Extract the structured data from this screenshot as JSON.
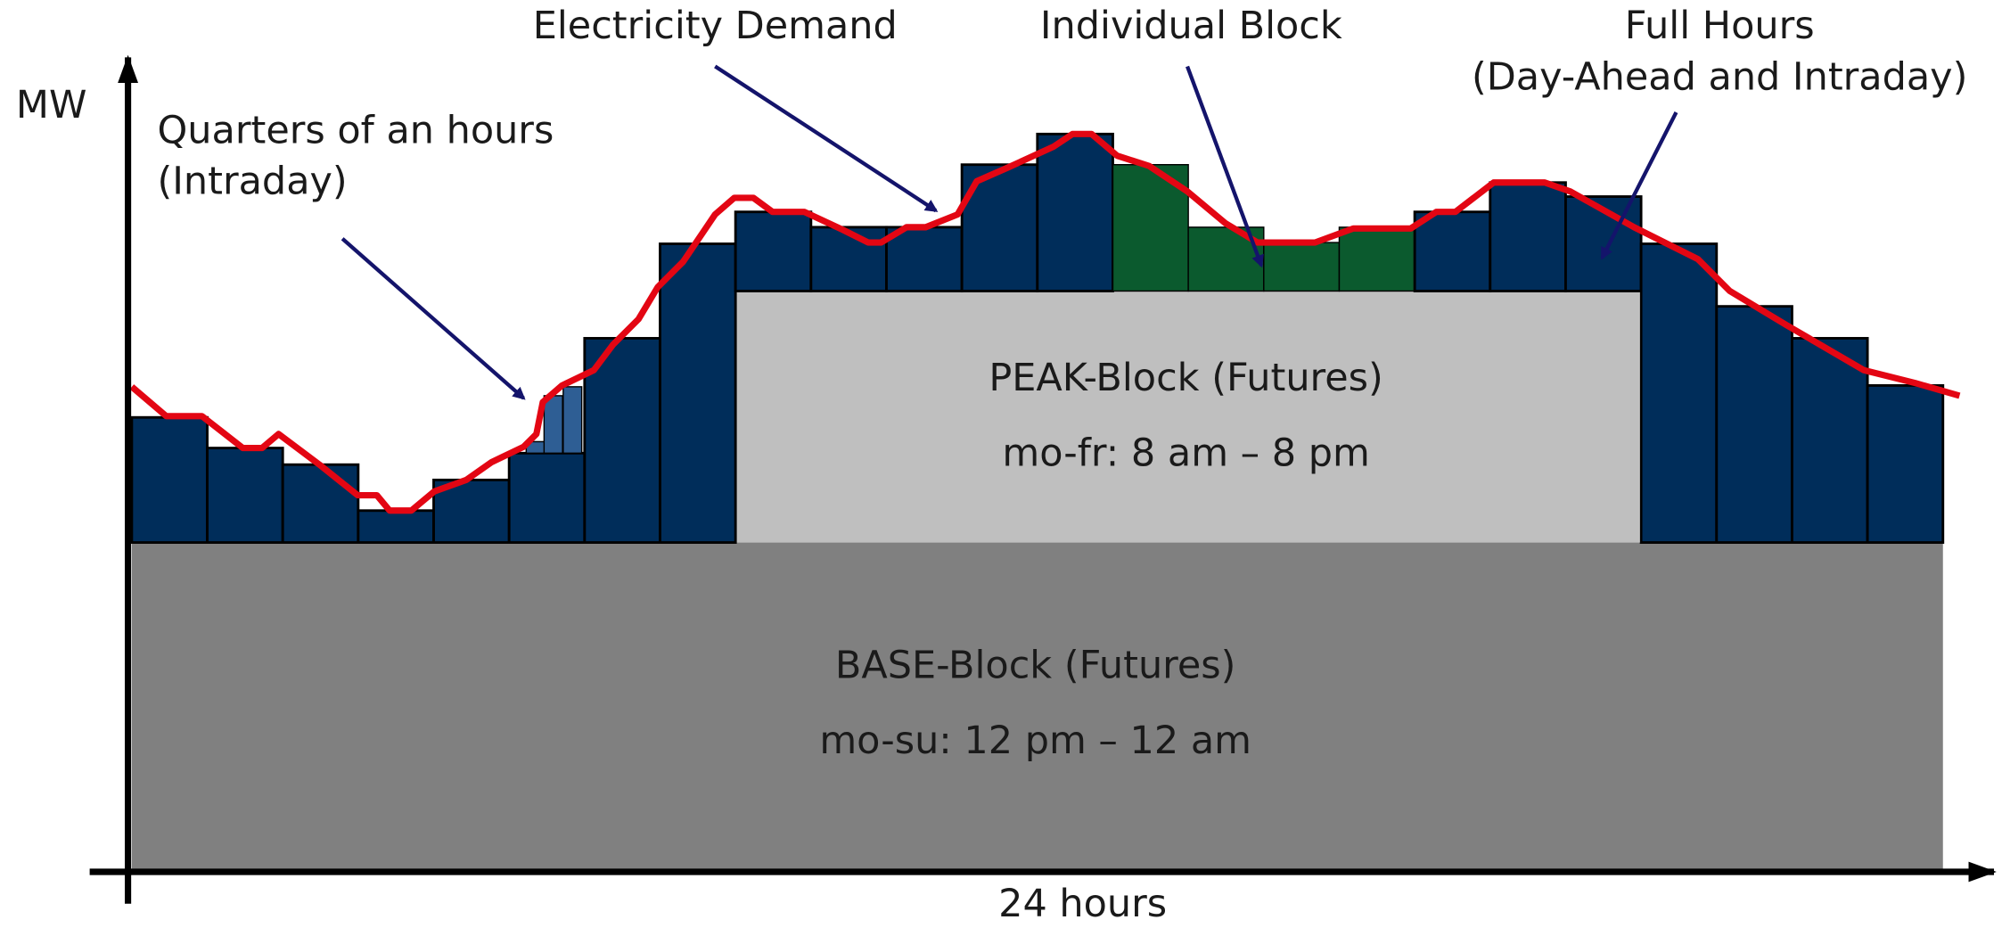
{
  "axes": {
    "y_label": "MW",
    "x_label": "24 hours"
  },
  "annotations": {
    "electricity_demand": "Electricity Demand",
    "individual_block": "Individual Block",
    "full_hours": {
      "line1": "Full Hours",
      "line2": "(Day-Ahead and Intraday)"
    },
    "quarters": {
      "line1": "Quarters of an hours",
      "line2": "(Intraday)"
    }
  },
  "peak_block": {
    "title": "PEAK-Block (Futures)",
    "hours": "mo-fr: 8 am – 8 pm"
  },
  "base_block": {
    "title": "BASE-Block (Futures)",
    "hours": "mo-su: 12 pm – 12 am"
  }
}
